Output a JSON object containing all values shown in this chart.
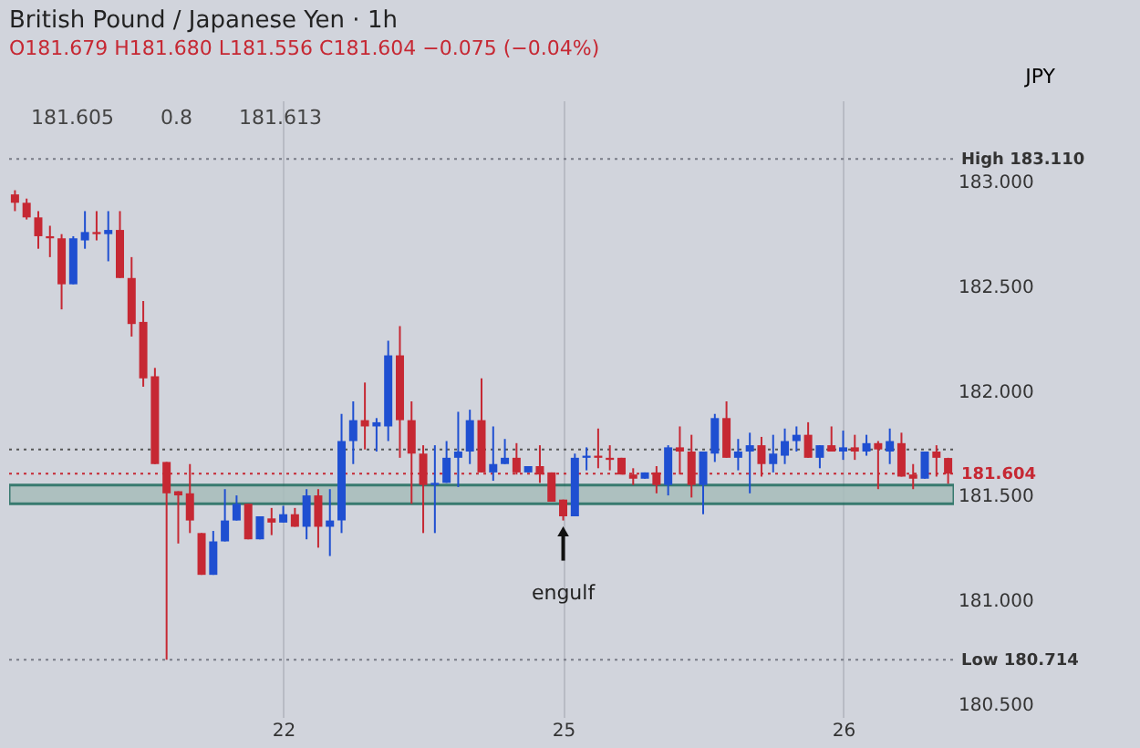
{
  "chart_data": {
    "type": "candlestick",
    "title": "British Pound / Japanese Yen · 1h",
    "subtitle": "O181.679 H181.680 L181.556 C181.604 −0.075 (−0.04%)",
    "ylabel": "JPY",
    "annotations": [
      "181.605",
      "0.8",
      "181.613",
      {
        "text": "engulf",
        "x": "25",
        "y": 181.38
      }
    ],
    "categories": [
      null,
      null,
      null,
      null,
      null,
      null,
      null,
      null,
      null,
      null,
      null,
      null,
      null,
      null,
      null,
      null,
      null,
      null,
      null,
      null,
      null,
      null,
      null,
      "22",
      null,
      null,
      null,
      null,
      null,
      null,
      null,
      null,
      null,
      null,
      null,
      null,
      null,
      null,
      null,
      null,
      null,
      null,
      null,
      null,
      null,
      null,
      null,
      "25",
      null,
      null,
      null,
      null,
      null,
      null,
      null,
      null,
      null,
      null,
      null,
      null,
      null,
      null,
      null,
      null,
      null,
      null,
      null,
      null,
      null,
      null,
      null,
      "26",
      null,
      null,
      null,
      null,
      null,
      null,
      null,
      null,
      null
    ],
    "ohlc": [
      [
        182.94,
        182.96,
        182.86,
        182.9
      ],
      [
        182.9,
        182.92,
        182.82,
        182.83
      ],
      [
        182.83,
        182.86,
        182.68,
        182.74
      ],
      [
        182.74,
        182.79,
        182.64,
        182.73
      ],
      [
        182.73,
        182.75,
        182.39,
        182.51
      ],
      [
        182.51,
        182.74,
        182.51,
        182.73
      ],
      [
        182.72,
        182.86,
        182.68,
        182.76
      ],
      [
        182.76,
        182.86,
        182.72,
        182.75
      ],
      [
        182.75,
        182.86,
        182.62,
        182.77
      ],
      [
        182.77,
        182.86,
        182.54,
        182.54
      ],
      [
        182.54,
        182.64,
        182.26,
        182.32
      ],
      [
        182.33,
        182.43,
        182.02,
        182.06
      ],
      [
        182.07,
        182.11,
        181.65,
        181.65
      ],
      [
        181.66,
        181.66,
        180.714,
        181.51
      ],
      [
        181.52,
        181.52,
        181.27,
        181.5
      ],
      [
        181.51,
        181.65,
        181.32,
        181.38
      ],
      [
        181.32,
        181.32,
        181.12,
        181.12
      ],
      [
        181.12,
        181.33,
        181.12,
        181.28
      ],
      [
        181.28,
        181.53,
        181.28,
        181.38
      ],
      [
        181.38,
        181.5,
        181.38,
        181.46
      ],
      [
        181.46,
        181.46,
        181.29,
        181.29
      ],
      [
        181.29,
        181.4,
        181.29,
        181.4
      ],
      [
        181.39,
        181.44,
        181.31,
        181.37
      ],
      [
        181.37,
        181.45,
        181.37,
        181.41
      ],
      [
        181.41,
        181.44,
        181.35,
        181.35
      ],
      [
        181.35,
        181.53,
        181.29,
        181.5
      ],
      [
        181.5,
        181.53,
        181.25,
        181.35
      ],
      [
        181.35,
        181.53,
        181.21,
        181.38
      ],
      [
        181.38,
        181.89,
        181.32,
        181.76
      ],
      [
        181.76,
        181.95,
        181.65,
        181.86
      ],
      [
        181.86,
        182.04,
        181.72,
        181.83
      ],
      [
        181.83,
        181.87,
        181.71,
        181.85
      ],
      [
        181.83,
        182.24,
        181.76,
        182.17
      ],
      [
        182.17,
        182.31,
        181.68,
        181.86
      ],
      [
        181.86,
        181.95,
        181.46,
        181.7
      ],
      [
        181.7,
        181.74,
        181.32,
        181.55
      ],
      [
        181.55,
        181.74,
        181.32,
        181.56
      ],
      [
        181.56,
        181.76,
        181.56,
        181.68
      ],
      [
        181.68,
        181.9,
        181.54,
        181.71
      ],
      [
        181.71,
        181.91,
        181.65,
        181.86
      ],
      [
        181.86,
        182.06,
        181.61,
        181.61
      ],
      [
        181.61,
        181.83,
        181.57,
        181.65
      ],
      [
        181.65,
        181.77,
        181.65,
        181.68
      ],
      [
        181.68,
        181.75,
        181.6,
        181.61
      ],
      [
        181.61,
        181.64,
        181.61,
        181.64
      ],
      [
        181.64,
        181.74,
        181.56,
        181.6
      ],
      [
        181.61,
        181.61,
        181.47,
        181.47
      ],
      [
        181.48,
        181.48,
        181.38,
        181.4
      ],
      [
        181.4,
        181.7,
        181.4,
        181.68
      ],
      [
        181.68,
        181.73,
        181.62,
        181.69
      ],
      [
        181.69,
        181.82,
        181.63,
        181.68
      ],
      [
        181.68,
        181.74,
        181.62,
        181.67
      ],
      [
        181.68,
        181.68,
        181.6,
        181.6
      ],
      [
        181.6,
        181.63,
        181.55,
        181.58
      ],
      [
        181.58,
        181.61,
        181.58,
        181.61
      ],
      [
        181.61,
        181.64,
        181.51,
        181.55
      ],
      [
        181.55,
        181.74,
        181.5,
        181.73
      ],
      [
        181.73,
        181.83,
        181.6,
        181.71
      ],
      [
        181.71,
        181.79,
        181.49,
        181.55
      ],
      [
        181.55,
        181.71,
        181.41,
        181.71
      ],
      [
        181.7,
        181.89,
        181.66,
        181.87
      ],
      [
        181.87,
        181.95,
        181.68,
        181.68
      ],
      [
        181.68,
        181.77,
        181.62,
        181.71
      ],
      [
        181.71,
        181.8,
        181.51,
        181.74
      ],
      [
        181.74,
        181.78,
        181.59,
        181.65
      ],
      [
        181.65,
        181.79,
        181.61,
        181.7
      ],
      [
        181.69,
        181.82,
        181.65,
        181.76
      ],
      [
        181.76,
        181.83,
        181.71,
        181.79
      ],
      [
        181.79,
        181.85,
        181.68,
        181.68
      ],
      [
        181.68,
        181.74,
        181.63,
        181.74
      ],
      [
        181.74,
        181.83,
        181.71,
        181.71
      ],
      [
        181.71,
        181.81,
        181.67,
        181.73
      ],
      [
        181.73,
        181.79,
        181.67,
        181.71
      ],
      [
        181.71,
        181.79,
        181.69,
        181.75
      ],
      [
        181.75,
        181.76,
        181.53,
        181.72
      ],
      [
        181.71,
        181.82,
        181.65,
        181.76
      ],
      [
        181.75,
        181.8,
        181.59,
        181.59
      ],
      [
        181.6,
        181.65,
        181.53,
        181.58
      ],
      [
        181.58,
        181.71,
        181.58,
        181.71
      ],
      [
        181.71,
        181.74,
        181.59,
        181.68
      ],
      [
        181.679,
        181.68,
        181.556,
        181.604
      ]
    ],
    "colors": [
      "#c62833",
      "#c62833",
      "#c62833",
      "#c62833",
      "#c62833",
      "#1f4fd1",
      "#1f4fd1",
      "#c62833",
      "#1f4fd1",
      "#c62833",
      "#c62833",
      "#c62833",
      "#c62833",
      "#c62833",
      "#c62833",
      "#c62833",
      "#c62833",
      "#1f4fd1",
      "#1f4fd1",
      "#1f4fd1",
      "#c62833",
      "#1f4fd1",
      "#c62833",
      "#1f4fd1",
      "#c62833",
      "#1f4fd1",
      "#c62833",
      "#1f4fd1",
      "#1f4fd1",
      "#1f4fd1",
      "#c62833",
      "#1f4fd1",
      "#1f4fd1",
      "#c62833",
      "#c62833",
      "#c62833",
      "#1f4fd1",
      "#1f4fd1",
      "#1f4fd1",
      "#1f4fd1",
      "#c62833",
      "#1f4fd1",
      "#1f4fd1",
      "#c62833",
      "#1f4fd1",
      "#c62833",
      "#c62833",
      "#c62833",
      "#1f4fd1",
      "#1f4fd1",
      "#c62833",
      "#c62833",
      "#c62833",
      "#c62833",
      "#1f4fd1",
      "#c62833",
      "#1f4fd1",
      "#c62833",
      "#c62833",
      "#1f4fd1",
      "#1f4fd1",
      "#c62833",
      "#1f4fd1",
      "#1f4fd1",
      "#c62833",
      "#1f4fd1",
      "#1f4fd1",
      "#1f4fd1",
      "#c62833",
      "#1f4fd1",
      "#c62833",
      "#1f4fd1",
      "#c62833",
      "#1f4fd1",
      "#c62833",
      "#1f4fd1",
      "#c62833",
      "#c62833",
      "#1f4fd1",
      "#c62833",
      "#c62833"
    ],
    "ylim": [
      180.44,
      183.39
    ],
    "yticks": [
      {
        "value": 180.5,
        "label": "180.500"
      },
      {
        "value": 181,
        "label": "181.000"
      },
      {
        "value": 181.5,
        "label": "181.500"
      },
      {
        "value": 182,
        "label": "182.000"
      },
      {
        "value": 182.5,
        "label": "182.500"
      },
      {
        "value": 183,
        "label": "183.000"
      }
    ],
    "grid": "x",
    "ref_lines": [
      {
        "axis": "y",
        "value": 183.11,
        "label": "High 183.110",
        "color": "#787b86",
        "line_style": "dotted"
      },
      {
        "axis": "y",
        "value": 180.714,
        "label": "Low 180.714",
        "color": "#787b86",
        "line_style": "dotted"
      },
      {
        "axis": "y",
        "value": 181.72,
        "label": null,
        "color": "#555555",
        "line_style": "dotted"
      },
      {
        "axis": "y",
        "value": 181.604,
        "label": "181.604",
        "color": "#c62833",
        "line_style": "dotted"
      }
    ],
    "bands": [
      {
        "axis": "y",
        "from": 181.46,
        "to": 181.55,
        "label": null,
        "color": "#a7bdbb"
      }
    ]
  }
}
